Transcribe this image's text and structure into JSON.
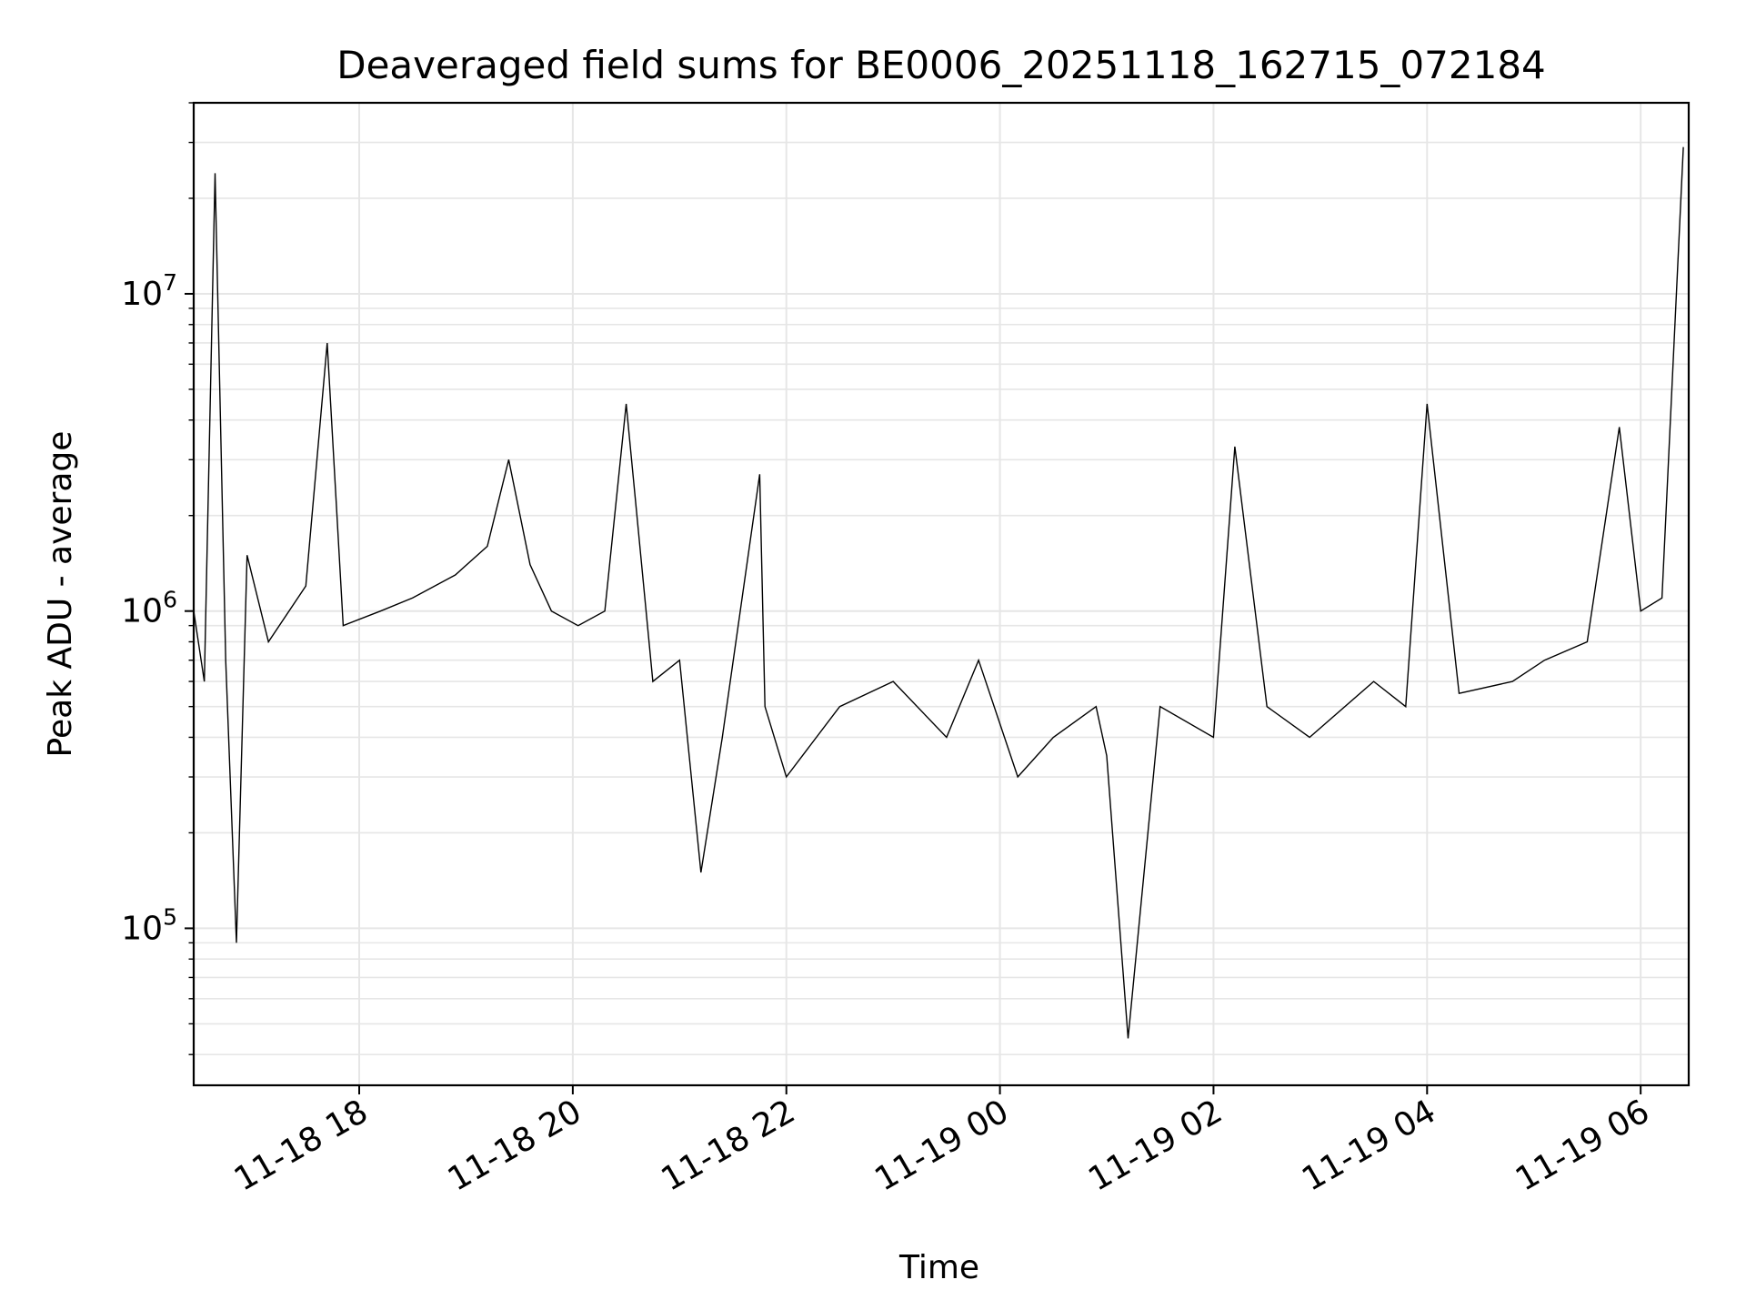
{
  "chart_data": {
    "type": "line",
    "title": "Deaveraged field sums for BE0006_20251118_162715_072184",
    "xlabel": "Time",
    "ylabel": "Peak ADU - average",
    "y_scale": "log",
    "ylim": [
      32000,
      40000000
    ],
    "xlim": [
      "2025-11-18 16:27",
      "2025-11-19 06:27"
    ],
    "grid": true,
    "line_color": "#000000",
    "grid_color": "#e6e6e6",
    "x_ticks": [
      {
        "value": "2025-11-18 18:00",
        "label": "11-18 18"
      },
      {
        "value": "2025-11-18 20:00",
        "label": "11-18 20"
      },
      {
        "value": "2025-11-18 22:00",
        "label": "11-18 22"
      },
      {
        "value": "2025-11-19 00:00",
        "label": "11-19 00"
      },
      {
        "value": "2025-11-19 02:00",
        "label": "11-19 02"
      },
      {
        "value": "2025-11-19 04:00",
        "label": "11-19 04"
      },
      {
        "value": "2025-11-19 06:00",
        "label": "11-19 06"
      }
    ],
    "y_ticks": [
      {
        "value": 100000,
        "base": "10",
        "exponent": "5"
      },
      {
        "value": 1000000,
        "base": "10",
        "exponent": "6"
      },
      {
        "value": 10000000,
        "base": "10",
        "exponent": "7"
      }
    ],
    "series": [
      {
        "x": [
          "2025-11-18 16:27",
          "2025-11-18 16:33",
          "2025-11-18 16:39",
          "2025-11-18 16:45",
          "2025-11-18 16:51",
          "2025-11-18 16:57",
          "2025-11-18 17:09",
          "2025-11-18 17:30",
          "2025-11-18 17:42",
          "2025-11-18 17:51",
          "2025-11-18 18:12",
          "2025-11-18 18:30",
          "2025-11-18 18:54",
          "2025-11-18 19:12",
          "2025-11-18 19:24",
          "2025-11-18 19:36",
          "2025-11-18 19:48",
          "2025-11-18 20:03",
          "2025-11-18 20:18",
          "2025-11-18 20:30",
          "2025-11-18 20:45",
          "2025-11-18 21:00",
          "2025-11-18 21:12",
          "2025-11-18 21:24",
          "2025-11-18 21:45",
          "2025-11-18 21:48",
          "2025-11-18 22:00",
          "2025-11-18 22:30",
          "2025-11-18 23:00",
          "2025-11-18 23:30",
          "2025-11-18 23:48",
          "2025-11-19 00:10",
          "2025-11-19 00:30",
          "2025-11-19 00:54",
          "2025-11-19 01:00",
          "2025-11-19 01:12",
          "2025-11-19 01:30",
          "2025-11-19 02:00",
          "2025-11-19 02:12",
          "2025-11-19 02:30",
          "2025-11-19 02:54",
          "2025-11-19 03:30",
          "2025-11-19 03:48",
          "2025-11-19 04:00",
          "2025-11-19 04:18",
          "2025-11-19 04:48",
          "2025-11-19 05:06",
          "2025-11-19 05:30",
          "2025-11-19 05:48",
          "2025-11-19 06:00",
          "2025-11-19 06:12",
          "2025-11-19 06:24"
        ],
        "y": [
          1000000,
          600000,
          24000000,
          700000,
          90000,
          1500000,
          800000,
          1200000,
          7000000,
          900000,
          1000000,
          1100000,
          1300000,
          1600000,
          3000000,
          1400000,
          1000000,
          900000,
          1000000,
          4500000,
          600000,
          700000,
          150000,
          400000,
          2700000,
          500000,
          300000,
          500000,
          600000,
          400000,
          700000,
          300000,
          400000,
          500000,
          350000,
          45000,
          500000,
          400000,
          3300000,
          500000,
          400000,
          600000,
          500000,
          4500000,
          550000,
          600000,
          700000,
          800000,
          3800000,
          1000000,
          1100000,
          29000000
        ]
      }
    ]
  }
}
